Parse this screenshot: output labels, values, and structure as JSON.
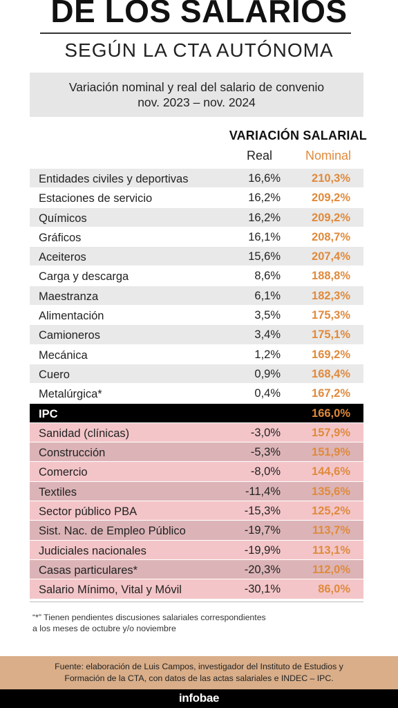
{
  "header": {
    "title": "DE LOS SALARIOS",
    "subtitle": "SEGÚN LA CTA AUTÓNOMA"
  },
  "box": {
    "line1": "Variación nominal y real del salario de convenio",
    "line2": "nov. 2023 – nov. 2024"
  },
  "chart_data": {
    "type": "table",
    "column_group": "VARIACIÓN SALARIAL",
    "columns": [
      "Real",
      "Nominal"
    ],
    "rows": [
      {
        "label": "Entidades civiles y deportivas",
        "real": "16,6%",
        "nominal": "210,3%",
        "kind": "pos"
      },
      {
        "label": "Estaciones de servicio",
        "real": "16,2%",
        "nominal": "209,2%",
        "kind": "pos"
      },
      {
        "label": "Químicos",
        "real": "16,2%",
        "nominal": "209,2%",
        "kind": "pos"
      },
      {
        "label": "Gráficos",
        "real": "16,1%",
        "nominal": "208,7%",
        "kind": "pos"
      },
      {
        "label": "Aceiteros",
        "real": "15,6%",
        "nominal": "207,4%",
        "kind": "pos"
      },
      {
        "label": "Carga y descarga",
        "real": "8,6%",
        "nominal": "188,8%",
        "kind": "pos"
      },
      {
        "label": "Maestranza",
        "real": "6,1%",
        "nominal": "182,3%",
        "kind": "pos"
      },
      {
        "label": "Alimentación",
        "real": "3,5%",
        "nominal": "175,3%",
        "kind": "pos"
      },
      {
        "label": "Camioneros",
        "real": "3,4%",
        "nominal": "175,1%",
        "kind": "pos"
      },
      {
        "label": "Mecánica",
        "real": "1,2%",
        "nominal": "169,2%",
        "kind": "pos"
      },
      {
        "label": "Cuero",
        "real": "0,9%",
        "nominal": "168,4%",
        "kind": "pos"
      },
      {
        "label": "Metalúrgica*",
        "real": "0,4%",
        "nominal": "167,2%",
        "kind": "pos"
      },
      {
        "label": "IPC",
        "real": "",
        "nominal": "166,0%",
        "kind": "ipc"
      },
      {
        "label": "Sanidad (clínicas)",
        "real": "-3,0%",
        "nominal": "157,9%",
        "kind": "neg"
      },
      {
        "label": "Construcción",
        "real": "-5,3%",
        "nominal": "151,9%",
        "kind": "neg"
      },
      {
        "label": "Comercio",
        "real": "-8,0%",
        "nominal": "144,6%",
        "kind": "neg"
      },
      {
        "label": "Textiles",
        "real": "-11,4%",
        "nominal": "135,6%",
        "kind": "neg"
      },
      {
        "label": "Sector público PBA",
        "real": "-15,3%",
        "nominal": "125,2%",
        "kind": "neg"
      },
      {
        "label": "Sist. Nac. de Empleo Público",
        "real": "-19,7%",
        "nominal": "113,7%",
        "kind": "neg"
      },
      {
        "label": "Judiciales nacionales",
        "real": "-19,9%",
        "nominal": "113,1%",
        "kind": "neg"
      },
      {
        "label": "Casas particulares*",
        "real": "-20,3%",
        "nominal": "112,0%",
        "kind": "neg"
      },
      {
        "label": "Salario Mínimo, Vital y Móvil",
        "real": "-30,1%",
        "nominal": "86,0%",
        "kind": "neg"
      }
    ]
  },
  "footnote": {
    "line1": "“*” Tienen pendientes discusiones salariales correspondientes",
    "line2": "a los meses de octubre y/o noviembre"
  },
  "source": {
    "line1": "Fuente: elaboración de Luis Campos, investigador del Instituto de Estudios y",
    "line2": "Formación de la CTA, con datos de las actas salariales e INDEC – IPC."
  },
  "brand": "infobae",
  "colors": {
    "nominal": "#e08a3c",
    "ipc_row": "#000000",
    "negative_row_light": "#f3c5c8",
    "negative_row_dark": "#dcb4b7",
    "positive_row_shade": "#e9e9e9",
    "source_band": "#d9ae89"
  }
}
